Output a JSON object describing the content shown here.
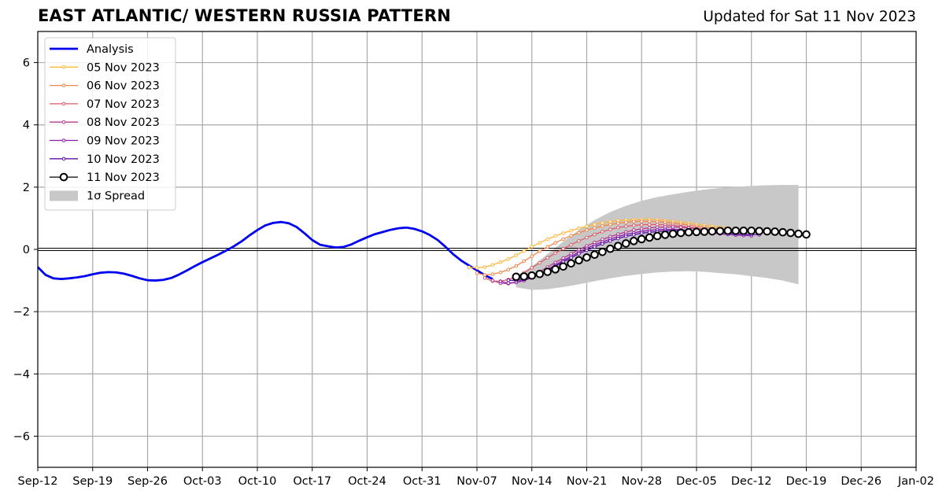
{
  "header": {
    "title": "EAST ATLANTIC/ WESTERN RUSSIA PATTERN",
    "subtitle": "Updated for Sat 11 Nov 2023"
  },
  "chart_data": {
    "type": "line",
    "title": "EAST ATLANTIC/ WESTERN RUSSIA PATTERN",
    "xlabel": "",
    "ylabel": "",
    "xlim": [
      "2023-09-12",
      "2024-01-02"
    ],
    "ylim": [
      -7,
      7
    ],
    "grid": true,
    "legend_position": "top-left",
    "x_ticks": [
      "2023-09-12",
      "2023-09-19",
      "2023-09-26",
      "2023-10-03",
      "2023-10-10",
      "2023-10-17",
      "2023-10-24",
      "2023-10-31",
      "2023-11-07",
      "2023-11-14",
      "2023-11-21",
      "2023-11-28",
      "2023-12-05",
      "2023-12-12",
      "2023-12-19",
      "2023-12-26",
      "2024-01-02"
    ],
    "x_tick_labels": [
      "Sep-12",
      "Sep-19",
      "Sep-26",
      "Oct-03",
      "Oct-10",
      "Oct-17",
      "Oct-24",
      "Oct-31",
      "Nov-07",
      "Nov-14",
      "Nov-21",
      "Nov-28",
      "Dec-05",
      "Dec-12",
      "Dec-19",
      "Dec-26",
      "Jan-02"
    ],
    "y_ticks": [
      -6,
      -4,
      -2,
      0,
      2,
      4,
      6
    ],
    "y_tick_labels": [
      "−6",
      "−4",
      "−2",
      "0",
      "2",
      "4",
      "6"
    ],
    "analysis": {
      "name": "Analysis",
      "color": "#0000ee",
      "x": [
        "2023-09-12",
        "2023-09-13",
        "2023-09-14",
        "2023-09-15",
        "2023-09-16",
        "2023-09-17",
        "2023-09-18",
        "2023-09-19",
        "2023-09-20",
        "2023-09-21",
        "2023-09-22",
        "2023-09-23",
        "2023-09-24",
        "2023-09-25",
        "2023-09-26",
        "2023-09-27",
        "2023-09-28",
        "2023-09-29",
        "2023-09-30",
        "2023-10-01",
        "2023-10-02",
        "2023-10-03",
        "2023-10-04",
        "2023-10-05",
        "2023-10-06",
        "2023-10-07",
        "2023-10-08",
        "2023-10-09",
        "2023-10-10",
        "2023-10-11",
        "2023-10-12",
        "2023-10-13",
        "2023-10-14",
        "2023-10-15",
        "2023-10-16",
        "2023-10-17",
        "2023-10-18",
        "2023-10-19",
        "2023-10-20",
        "2023-10-21",
        "2023-10-22",
        "2023-10-23",
        "2023-10-24",
        "2023-10-25",
        "2023-10-26",
        "2023-10-27",
        "2023-10-28",
        "2023-10-29",
        "2023-10-30",
        "2023-10-31",
        "2023-11-01",
        "2023-11-02",
        "2023-11-03",
        "2023-11-04",
        "2023-11-05",
        "2023-11-06",
        "2023-11-07",
        "2023-11-08",
        "2023-11-09"
      ],
      "y": [
        -0.57,
        -0.82,
        -0.93,
        -0.95,
        -0.93,
        -0.9,
        -0.86,
        -0.8,
        -0.75,
        -0.73,
        -0.74,
        -0.78,
        -0.85,
        -0.93,
        -0.99,
        -1.0,
        -0.98,
        -0.92,
        -0.81,
        -0.68,
        -0.54,
        -0.41,
        -0.29,
        -0.17,
        -0.04,
        0.1,
        0.26,
        0.45,
        0.62,
        0.77,
        0.85,
        0.88,
        0.84,
        0.72,
        0.52,
        0.3,
        0.15,
        0.1,
        0.06,
        0.08,
        0.16,
        0.28,
        0.39,
        0.49,
        0.56,
        0.63,
        0.68,
        0.7,
        0.66,
        0.58,
        0.46,
        0.3,
        0.08,
        -0.16,
        -0.36,
        -0.52,
        -0.67,
        -0.83,
        -0.95
      ]
    },
    "forecasts": [
      {
        "name": "05 Nov 2023",
        "color": "#fdb73a",
        "start": "2023-11-06",
        "y": [
          -0.58,
          -0.59,
          -0.57,
          -0.5,
          -0.41,
          -0.31,
          -0.19,
          -0.05,
          0.09,
          0.21,
          0.33,
          0.43,
          0.52,
          0.6,
          0.68,
          0.74,
          0.8,
          0.85,
          0.89,
          0.92,
          0.94,
          0.95,
          0.96,
          0.96,
          0.95,
          0.93,
          0.9,
          0.87,
          0.84,
          0.8,
          0.77,
          0.74,
          0.71,
          0.69
        ]
      },
      {
        "name": "06 Nov 2023",
        "color": "#f0864a",
        "start": "2023-11-07",
        "y": [
          -0.76,
          -0.82,
          -0.8,
          -0.74,
          -0.65,
          -0.53,
          -0.38,
          -0.22,
          -0.06,
          0.08,
          0.21,
          0.33,
          0.44,
          0.53,
          0.62,
          0.69,
          0.75,
          0.8,
          0.84,
          0.87,
          0.89,
          0.9,
          0.9,
          0.89,
          0.87,
          0.84,
          0.81,
          0.78,
          0.74,
          0.71,
          0.68,
          0.66,
          0.64
        ]
      },
      {
        "name": "07 Nov 2023",
        "color": "#dc5c6a",
        "start": "2023-11-08",
        "y": [
          -0.92,
          -1.02,
          -1.02,
          -0.97,
          -0.88,
          -0.75,
          -0.59,
          -0.43,
          -0.27,
          -0.12,
          0.02,
          0.15,
          0.27,
          0.38,
          0.48,
          0.57,
          0.64,
          0.7,
          0.74,
          0.77,
          0.79,
          0.8,
          0.8,
          0.79,
          0.77,
          0.74,
          0.71,
          0.68,
          0.65,
          0.62,
          0.6,
          0.58,
          0.56
        ]
      },
      {
        "name": "08 Nov 2023",
        "color": "#b63c8e",
        "start": "2023-11-09",
        "y": [
          -1.0,
          -1.09,
          -1.1,
          -1.06,
          -0.98,
          -0.86,
          -0.72,
          -0.57,
          -0.42,
          -0.28,
          -0.14,
          -0.01,
          0.11,
          0.22,
          0.32,
          0.41,
          0.49,
          0.56,
          0.62,
          0.66,
          0.69,
          0.71,
          0.72,
          0.72,
          0.71,
          0.69,
          0.66,
          0.63,
          0.6,
          0.57,
          0.54,
          0.51,
          0.49
        ]
      },
      {
        "name": "09 Nov 2023",
        "color": "#8c1ab0",
        "start": "2023-11-10",
        "y": [
          -1.03,
          -1.08,
          -1.06,
          -1.0,
          -0.91,
          -0.79,
          -0.65,
          -0.5,
          -0.36,
          -0.22,
          -0.09,
          0.03,
          0.14,
          0.24,
          0.33,
          0.41,
          0.48,
          0.53,
          0.58,
          0.61,
          0.63,
          0.64,
          0.64,
          0.63,
          0.61,
          0.59,
          0.56,
          0.53,
          0.5,
          0.48,
          0.46,
          0.45,
          0.44
        ]
      },
      {
        "name": "10 Nov 2023",
        "color": "#5c0fa6",
        "start": "2023-11-11",
        "y": [
          -0.99,
          -1.0,
          -0.96,
          -0.89,
          -0.79,
          -0.67,
          -0.54,
          -0.4,
          -0.27,
          -0.14,
          -0.03,
          0.08,
          0.18,
          0.27,
          0.35,
          0.42,
          0.47,
          0.52,
          0.55,
          0.57,
          0.59,
          0.6,
          0.6,
          0.6,
          0.59,
          0.58,
          0.56,
          0.54,
          0.52,
          0.5,
          0.49,
          0.48,
          0.47
        ]
      },
      {
        "name": "11 Nov 2023",
        "color": "#000000",
        "start": "2023-11-12",
        "y": [
          -0.88,
          -0.87,
          -0.84,
          -0.79,
          -0.72,
          -0.64,
          -0.55,
          -0.45,
          -0.35,
          -0.26,
          -0.17,
          -0.08,
          0.02,
          0.11,
          0.19,
          0.27,
          0.33,
          0.38,
          0.43,
          0.47,
          0.5,
          0.53,
          0.55,
          0.56,
          0.57,
          0.58,
          0.59,
          0.6,
          0.6,
          0.6,
          0.6,
          0.59,
          0.58,
          0.57,
          0.55,
          0.53,
          0.5,
          0.48
        ]
      }
    ],
    "spread": {
      "name": "1σ Spread",
      "color": "#c8c8c8",
      "x": [
        "2023-11-12",
        "2023-11-14",
        "2023-11-16",
        "2023-11-18",
        "2023-11-20",
        "2023-11-22",
        "2023-11-24",
        "2023-11-26",
        "2023-11-28",
        "2023-11-30",
        "2023-12-02",
        "2023-12-04",
        "2023-12-06",
        "2023-12-08",
        "2023-12-10",
        "2023-12-12",
        "2023-12-14",
        "2023-12-16",
        "2023-12-18"
      ],
      "upper": [
        -0.87,
        -0.55,
        -0.15,
        0.25,
        0.62,
        0.94,
        1.2,
        1.4,
        1.56,
        1.68,
        1.77,
        1.85,
        1.92,
        1.97,
        2.01,
        2.04,
        2.06,
        2.07,
        2.07
      ],
      "lower": [
        -1.22,
        -1.3,
        -1.28,
        -1.21,
        -1.12,
        -1.02,
        -0.93,
        -0.85,
        -0.79,
        -0.74,
        -0.71,
        -0.7,
        -0.72,
        -0.76,
        -0.8,
        -0.86,
        -0.92,
        -1.0,
        -1.12
      ]
    },
    "legend": [
      "Analysis",
      "05 Nov 2023",
      "06 Nov 2023",
      "07 Nov 2023",
      "08 Nov 2023",
      "09 Nov 2023",
      "10 Nov 2023",
      "11 Nov 2023",
      "1σ Spread"
    ]
  }
}
